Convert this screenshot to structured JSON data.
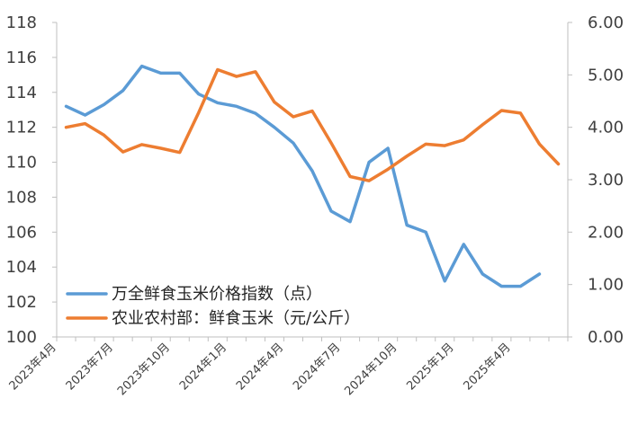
{
  "chart_data": {
    "type": "line",
    "x": [
      "2023年4月",
      "2023年5月",
      "2023年6月",
      "2023年7月",
      "2023年8月",
      "2023年9月",
      "2023年10月",
      "2023年11月",
      "2023年12月",
      "2024年1月",
      "2024年2月",
      "2024年3月",
      "2024年4月",
      "2024年5月",
      "2024年6月",
      "2024年7月",
      "2024年8月",
      "2024年9月",
      "2024年10月",
      "2024年11月",
      "2024年12月",
      "2025年1月",
      "2025年2月",
      "2025年3月",
      "2025年4月",
      "2025年5月",
      "2025年6月"
    ],
    "x_tick_labels": [
      "2023年4月",
      "2023年7月",
      "2023年10月",
      "2024年1月",
      "2024年4月",
      "2024年7月",
      "2024年10月",
      "2025年1月",
      "2025年4月"
    ],
    "y_left": {
      "lim": [
        100,
        118
      ],
      "ticks": [
        "100",
        "102",
        "104",
        "106",
        "108",
        "110",
        "112",
        "114",
        "116",
        "118"
      ]
    },
    "y_right": {
      "lim": [
        0,
        6
      ],
      "ticks": [
        "0.00",
        "1.00",
        "2.00",
        "3.00",
        "4.00",
        "5.00",
        "6.00"
      ]
    },
    "grid": false,
    "legend_position": "bottom-left",
    "series": [
      {
        "name": "万全鲜食玉米价格指数（点）",
        "axis": "left",
        "color": "#5b9bd5",
        "values": [
          113.2,
          112.7,
          113.3,
          114.1,
          115.5,
          115.1,
          115.1,
          113.9,
          113.4,
          113.2,
          112.8,
          112.0,
          111.1,
          109.5,
          107.2,
          106.6,
          110.0,
          110.8,
          106.4,
          106.0,
          103.2,
          105.3,
          103.6,
          102.9,
          102.9,
          103.6,
          null
        ]
      },
      {
        "name": "农业农村部：鲜食玉米（元/公斤）",
        "axis": "right",
        "color": "#ed7d31",
        "values": [
          4.0,
          4.07,
          3.85,
          3.53,
          3.67,
          3.6,
          3.52,
          4.28,
          5.1,
          4.97,
          5.06,
          4.48,
          4.2,
          4.31,
          3.7,
          3.06,
          2.98,
          3.2,
          3.45,
          3.68,
          3.65,
          3.76,
          4.05,
          4.32,
          4.27,
          3.68,
          3.3
        ]
      }
    ]
  }
}
